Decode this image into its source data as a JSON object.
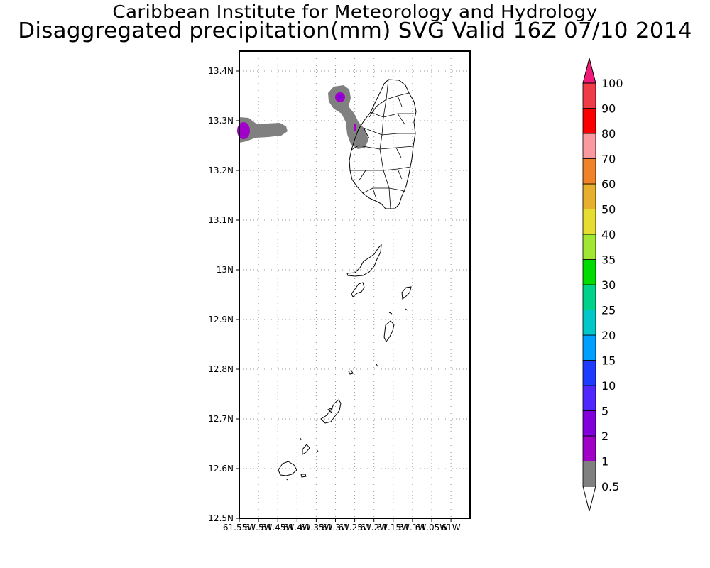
{
  "title_line1": "Caribbean Institute for Meteorology and Hydrology",
  "title_line2": "Disaggregated precipitation(mm) SVG Valid 16Z 07/10 2014",
  "lat_ticks": [
    "13.4N",
    "13.3N",
    "13.2N",
    "13.1N",
    "13N",
    "12.9N",
    "12.8N",
    "12.7N",
    "12.6N",
    "12.5N"
  ],
  "lon_ticks": [
    "61.55W",
    "61.5W",
    "61.45W",
    "61.4W",
    "61.35W",
    "61.3W",
    "61.25W",
    "61.2W",
    "61.15W",
    "61.1W",
    "61.05W",
    "61W"
  ],
  "legend": {
    "values": [
      "0.5",
      "1",
      "2",
      "5",
      "10",
      "15",
      "20",
      "25",
      "30",
      "35",
      "40",
      "50",
      "60",
      "70",
      "80",
      "90",
      "100"
    ],
    "colors": [
      "#808080",
      "#a000c8",
      "#8200dc",
      "#5028ff",
      "#1e3cff",
      "#00a0ff",
      "#00c8c8",
      "#00d28c",
      "#00dc00",
      "#a0e632",
      "#e6dc32",
      "#e6af2d",
      "#f08228",
      "#fa9aa0",
      "#fa0000",
      "#f03c46",
      "#f01a78"
    ]
  }
}
